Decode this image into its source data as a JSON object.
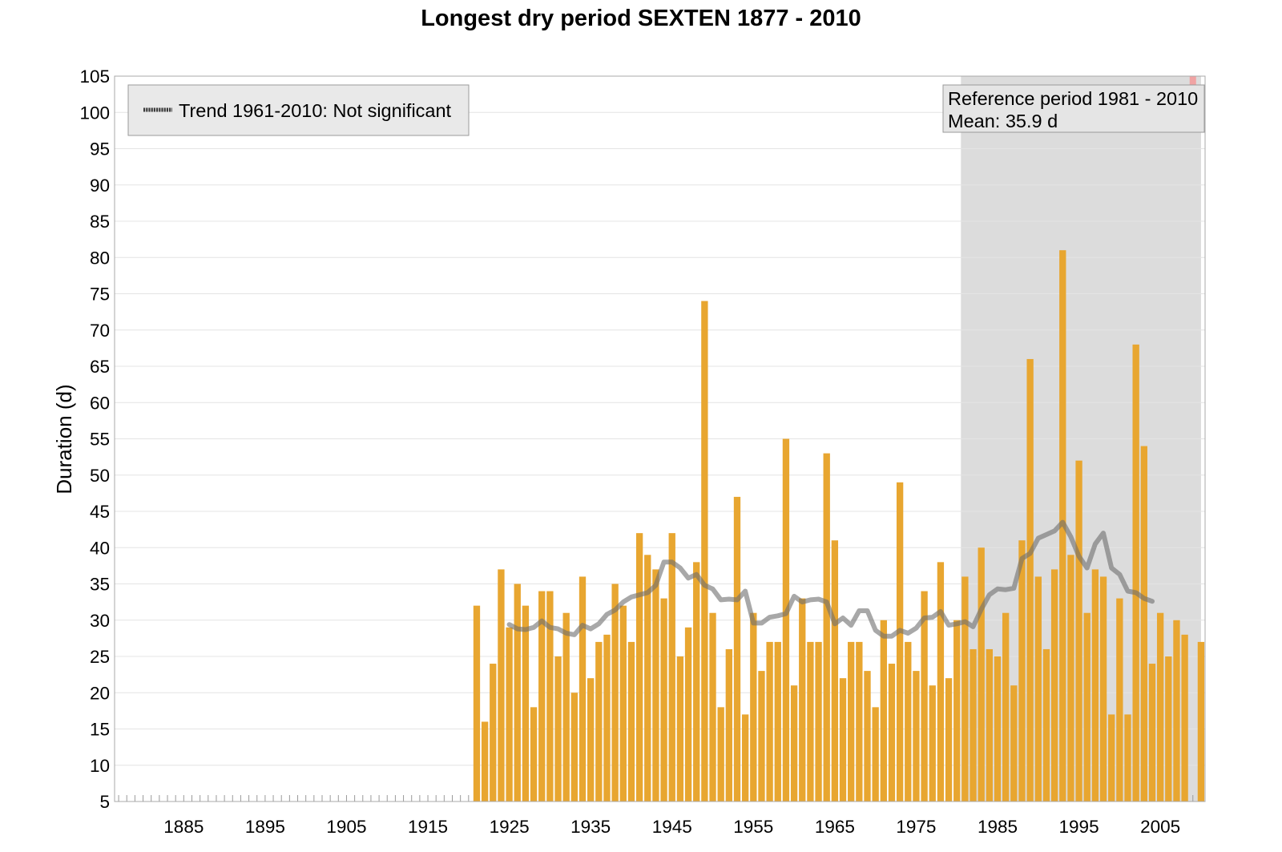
{
  "chart_data": {
    "type": "bar",
    "title": "Longest dry period SEXTEN 1877 - 2010",
    "ylabel": "Duration (d)",
    "ylim": [
      5,
      105
    ],
    "xlim": [
      1876.5,
      2010.5
    ],
    "yticks": [
      5,
      10,
      15,
      20,
      25,
      30,
      35,
      40,
      45,
      50,
      55,
      60,
      65,
      70,
      75,
      80,
      85,
      90,
      95,
      100,
      105
    ],
    "xticks": [
      1885,
      1895,
      1905,
      1915,
      1925,
      1935,
      1945,
      1955,
      1965,
      1975,
      1985,
      1995,
      2005
    ],
    "grid": true,
    "bar_color": "#E8A630",
    "x": [
      1921,
      1922,
      1923,
      1924,
      1925,
      1926,
      1927,
      1928,
      1929,
      1930,
      1931,
      1932,
      1933,
      1934,
      1935,
      1936,
      1937,
      1938,
      1939,
      1940,
      1941,
      1942,
      1943,
      1944,
      1945,
      1946,
      1947,
      1948,
      1949,
      1950,
      1951,
      1952,
      1953,
      1954,
      1955,
      1956,
      1957,
      1958,
      1959,
      1960,
      1961,
      1962,
      1963,
      1964,
      1965,
      1966,
      1967,
      1968,
      1969,
      1970,
      1971,
      1972,
      1973,
      1974,
      1975,
      1976,
      1977,
      1978,
      1979,
      1980,
      1981,
      1982,
      1983,
      1984,
      1985,
      1986,
      1987,
      1988,
      1989,
      1990,
      1991,
      1992,
      1993,
      1994,
      1995,
      1996,
      1997,
      1998,
      1999,
      2000,
      2001,
      2002,
      2003,
      2004,
      2005,
      2006,
      2007,
      2008,
      2009,
      2010
    ],
    "values": [
      32,
      16,
      24,
      37,
      29,
      35,
      32,
      18,
      34,
      34,
      25,
      31,
      20,
      36,
      22,
      27,
      28,
      35,
      32,
      27,
      42,
      39,
      37,
      33,
      42,
      25,
      29,
      38,
      74,
      31,
      18,
      26,
      47,
      17,
      31,
      23,
      27,
      27,
      55,
      21,
      33,
      27,
      27,
      53,
      41,
      22,
      27,
      27,
      23,
      18,
      30,
      24,
      49,
      27,
      23,
      34,
      21,
      38,
      22,
      30,
      36,
      26,
      40,
      26,
      25,
      31,
      21,
      41,
      66,
      36,
      26,
      37,
      81,
      39,
      52,
      31,
      37,
      36,
      17,
      33,
      17,
      68,
      54,
      24,
      31,
      25,
      30,
      28,
      null,
      27
    ],
    "missing_years": [
      2009
    ],
    "missing_marker_color": "#F0A3A3",
    "smoothed": {
      "color": "#6E6E6E",
      "x": [
        1925,
        1926,
        1927,
        1928,
        1929,
        1930,
        1931,
        1932,
        1933,
        1934,
        1935,
        1936,
        1937,
        1938,
        1939,
        1940,
        1941,
        1942,
        1943,
        1944,
        1945,
        1946,
        1947,
        1948,
        1949,
        1950,
        1951,
        1952,
        1953,
        1954,
        1955,
        1956,
        1957,
        1958,
        1959,
        1960,
        1961,
        1962,
        1963,
        1964,
        1965,
        1966,
        1967,
        1968,
        1969,
        1970,
        1971,
        1972,
        1973,
        1974,
        1975,
        1976,
        1977,
        1978,
        1979,
        1980,
        1981,
        1982,
        1983,
        1984,
        1985,
        1986,
        1987,
        1988,
        1989,
        1990,
        1991,
        1992,
        1993,
        1994,
        1995,
        1996,
        1997,
        1998,
        1999,
        2000,
        2001,
        2002,
        2003,
        2004
      ],
      "values": [
        29.4,
        28.8,
        28.7,
        29.0,
        29.9,
        29.0,
        28.8,
        28.2,
        28.0,
        29.3,
        28.8,
        29.5,
        30.8,
        31.4,
        32.5,
        33.2,
        33.5,
        33.8,
        34.8,
        38.0,
        38.0,
        37.2,
        35.8,
        36.3,
        34.8,
        34.3,
        32.8,
        32.9,
        32.8,
        34.0,
        29.6,
        29.6,
        30.4,
        30.6,
        30.9,
        33.3,
        32.5,
        32.8,
        32.9,
        32.5,
        29.5,
        30.3,
        29.3,
        31.3,
        31.3,
        28.6,
        27.8,
        27.8,
        28.6,
        28.2,
        28.9,
        30.3,
        30.4,
        31.2,
        29.3,
        29.5,
        29.8,
        29.1,
        31.5,
        33.5,
        34.3,
        34.2,
        34.4,
        38.5,
        39.2,
        41.3,
        41.8,
        42.3,
        43.5,
        41.5,
        38.8,
        37.2,
        40.5,
        42.0,
        37.2,
        36.3,
        34.0,
        33.8,
        33.0,
        32.6
      ]
    },
    "legend": {
      "placement": "top-left",
      "entries": [
        {
          "label": "Trend 1961-2010: Not significant",
          "style": "dashed"
        }
      ]
    },
    "reference_period": {
      "start": 1981,
      "end": 2010,
      "label": "Reference period 1981 - 2010",
      "mean_label": "Mean: 35.9 d",
      "shade_color": "#DCDCDC",
      "placement": "top-right"
    }
  }
}
